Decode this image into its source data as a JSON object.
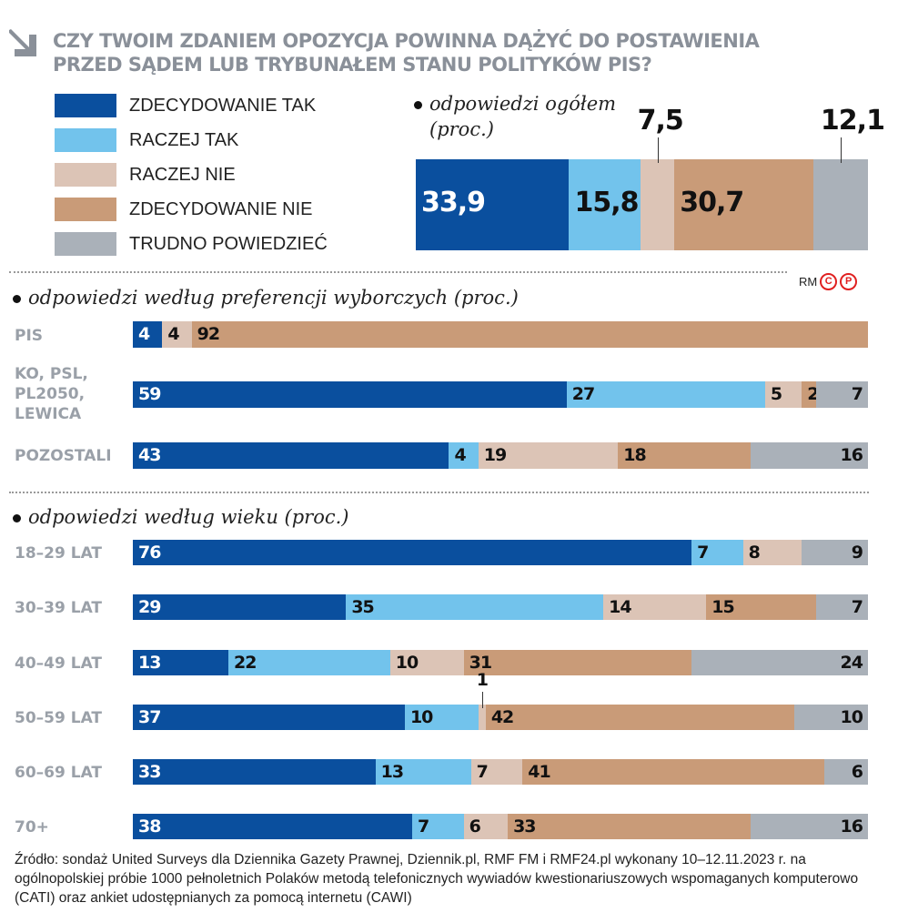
{
  "title": "CZY TWOIM ZDANIEM OPOZYCJA POWINNA DĄŻYĆ DO POSTAWIENIA PRZED SĄDEM LUB TRYBUNAŁEM STANU POLITYKÓW PIS?",
  "credit": {
    "text": "RM",
    "c": "C",
    "p": "P"
  },
  "source": "Źródło: sondaż United Surveys dla Dziennika Gazety Prawnej, Dziennik.pl, RMF FM i RMF24.pl wykonany 10–12.11.2023 r. na ogólnopolskiej próbie 1000 pełnoletnich Polaków metodą telefonicznych wywiadów kwestionariuszowych wspomaganych komputerowo (CATI) oraz ankiet udostępnianych za pomocą internetu (CAWI)",
  "chart_data": [
    {
      "type": "bar",
      "stacked": true,
      "orientation": "horizontal",
      "title": "odpowiedzi ogółem (proc.)",
      "categories": [
        ""
      ],
      "series": [
        {
          "name": "ZDECYDOWANIE TAK",
          "color": "#0a4f9e",
          "values": [
            33.9
          ],
          "labels": [
            "33,9"
          ]
        },
        {
          "name": "RACZEJ TAK",
          "color": "#72c3ec",
          "values": [
            15.8
          ],
          "labels": [
            "15,8"
          ]
        },
        {
          "name": "RACZEJ NIE",
          "color": "#dcc4b6",
          "values": [
            7.5
          ],
          "labels": [
            "7,5"
          ]
        },
        {
          "name": "ZDECYDOWANIE NIE",
          "color": "#c99b78",
          "values": [
            30.7
          ],
          "labels": [
            "30,7"
          ]
        },
        {
          "name": "TRUDNO POWIEDZIEĆ",
          "color": "#aab1b9",
          "values": [
            12.1
          ],
          "labels": [
            "12,1"
          ]
        }
      ]
    },
    {
      "type": "bar",
      "stacked": true,
      "orientation": "horizontal",
      "title": "odpowiedzi według preferencji wyborczych (proc.)",
      "categories": [
        "PIS",
        "KO, PSL, PL2050, LEWICA",
        "POZOSTALI"
      ],
      "series": [
        {
          "name": "ZDECYDOWANIE TAK",
          "values": [
            4,
            59,
            43
          ]
        },
        {
          "name": "RACZEJ TAK",
          "values": [
            0,
            27,
            4
          ]
        },
        {
          "name": "RACZEJ NIE",
          "values": [
            4,
            5,
            19
          ]
        },
        {
          "name": "ZDECYDOWANIE NIE",
          "values": [
            92,
            2,
            18
          ]
        },
        {
          "name": "TRUDNO POWIEDZIEĆ",
          "values": [
            0,
            7,
            16
          ]
        }
      ]
    },
    {
      "type": "bar",
      "stacked": true,
      "orientation": "horizontal",
      "title": "odpowiedzi według wieku (proc.)",
      "categories": [
        "18–29 LAT",
        "30–39 LAT",
        "40–49 LAT",
        "50–59 LAT",
        "60–69 LAT",
        "70+"
      ],
      "series": [
        {
          "name": "ZDECYDOWANIE TAK",
          "values": [
            76,
            29,
            13,
            37,
            33,
            38
          ]
        },
        {
          "name": "RACZEJ TAK",
          "values": [
            7,
            35,
            22,
            10,
            13,
            7
          ]
        },
        {
          "name": "RACZEJ NIE",
          "values": [
            8,
            14,
            10,
            1,
            7,
            6
          ]
        },
        {
          "name": "ZDECYDOWANIE NIE",
          "values": [
            0,
            15,
            31,
            42,
            41,
            33
          ]
        },
        {
          "name": "TRUDNO POWIEDZIEĆ",
          "values": [
            9,
            7,
            24,
            10,
            6,
            16
          ]
        }
      ]
    }
  ]
}
